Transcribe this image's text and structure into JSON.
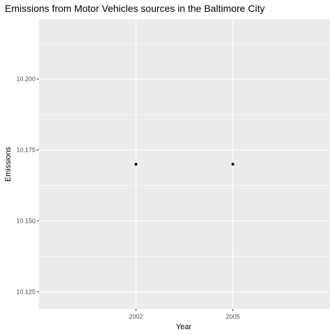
{
  "chart_data": {
    "type": "scatter",
    "title": "Emissions from Motor Vehicles sources in the Baltimore City",
    "xlabel": "Year",
    "ylabel": "Emissions",
    "x_categories": [
      "2002",
      "2005"
    ],
    "points": [
      {
        "x": "2002",
        "y": 10.17
      },
      {
        "x": "2005",
        "y": 10.17
      }
    ],
    "y_ticks": [
      10.125,
      10.15,
      10.175,
      10.2
    ],
    "y_tick_labels": [
      "10.125",
      "10.150",
      "10.175",
      "10.200"
    ],
    "ylim": [
      10.119,
      10.221
    ],
    "grid": true,
    "legend": "none",
    "colors": {
      "panel_background": "#ebebeb",
      "grid_line": "#ffffff",
      "point": "#000000",
      "tick_mark": "#333333",
      "tick_label": "#4d4d4d"
    }
  }
}
